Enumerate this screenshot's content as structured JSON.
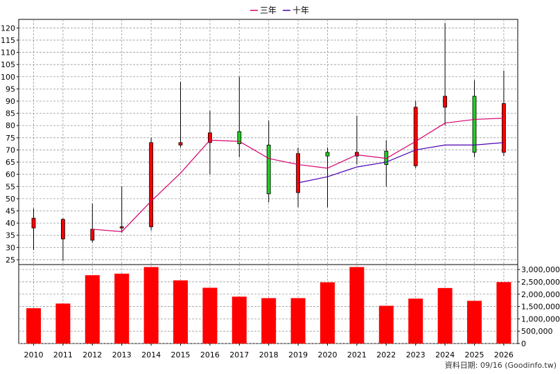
{
  "legend": [
    {
      "label": "三年",
      "color": "#d4006a"
    },
    {
      "label": "十年",
      "color": "#4b00b0"
    }
  ],
  "footer": "資料日期: 09/16  (Goodinfo.tw)",
  "colors": {
    "up": "#ff0000",
    "down": "#22cc22",
    "volume": "#ff0000",
    "grid": "#999999",
    "axis": "#000000"
  },
  "chart_data": [
    {
      "type": "candlestick",
      "years": [
        "2010",
        "2011",
        "2012",
        "2013",
        "2014",
        "2015",
        "2016",
        "2017",
        "2018",
        "2019",
        "2020",
        "2021",
        "2022",
        "2023",
        "2024",
        "2025",
        "2026"
      ],
      "ylim": [
        25,
        120
      ],
      "yticks": [
        25,
        30,
        35,
        40,
        45,
        50,
        55,
        60,
        65,
        70,
        75,
        80,
        85,
        90,
        95,
        100,
        105,
        110,
        115,
        120
      ],
      "grid": true,
      "candles": [
        {
          "year": "2010",
          "open": 38,
          "high": 46,
          "low": 29,
          "close": 42
        },
        {
          "year": "2011",
          "open": 33.5,
          "high": 42,
          "low": 24.5,
          "close": 41.5
        },
        {
          "year": "2012",
          "open": 33,
          "high": 48,
          "low": 32,
          "close": 37.5
        },
        {
          "year": "2013",
          "open": 38,
          "high": 55,
          "low": 36,
          "close": 38.5
        },
        {
          "year": "2014",
          "open": 38.5,
          "high": 75,
          "low": 37,
          "close": 73
        },
        {
          "year": "2015",
          "open": 72,
          "high": 98,
          "low": 71,
          "close": 73
        },
        {
          "year": "2016",
          "open": 73,
          "high": 86,
          "low": 60,
          "close": 77
        },
        {
          "year": "2017",
          "open": 77.5,
          "high": 100,
          "low": 67,
          "close": 72.5
        },
        {
          "year": "2018",
          "open": 72,
          "high": 82,
          "low": 48.5,
          "close": 52
        },
        {
          "year": "2019",
          "open": 52.5,
          "high": 71,
          "low": 46.5,
          "close": 68.5
        },
        {
          "year": "2020",
          "open": 69,
          "high": 71,
          "low": 46.5,
          "close": 67.5
        },
        {
          "year": "2021",
          "open": 67.5,
          "high": 84,
          "low": 64,
          "close": 69
        },
        {
          "year": "2022",
          "open": 69.5,
          "high": 74,
          "low": 55,
          "close": 64
        },
        {
          "year": "2023",
          "open": 63.5,
          "high": 90,
          "low": 62.5,
          "close": 87.5
        },
        {
          "year": "2024",
          "open": 87.5,
          "high": 122,
          "low": 80,
          "close": 92
        },
        {
          "year": "2025",
          "open": 92,
          "high": 98.5,
          "low": 67,
          "close": 69
        },
        {
          "year": "2026",
          "open": 69,
          "high": 102.5,
          "low": 67.5,
          "close": 89
        }
      ],
      "lines": [
        {
          "name": "三年",
          "color": "#d4006a",
          "values": [
            null,
            null,
            37.5,
            36.5,
            49,
            60.5,
            74,
            73.5,
            66.5,
            64,
            62.5,
            68,
            66.5,
            73.5,
            81,
            82.5,
            83
          ]
        },
        {
          "name": "十年",
          "color": "#4b00b0",
          "values": [
            null,
            null,
            null,
            null,
            null,
            null,
            null,
            null,
            null,
            56.5,
            59,
            63,
            65,
            70,
            72,
            72,
            73
          ]
        }
      ]
    },
    {
      "type": "bar",
      "categories": [
        "2010",
        "2011",
        "2012",
        "2013",
        "2014",
        "2015",
        "2016",
        "2017",
        "2018",
        "2019",
        "2020",
        "2021",
        "2022",
        "2023",
        "2024",
        "2025",
        "2026"
      ],
      "values": [
        1430000,
        1620000,
        2770000,
        2830000,
        3100000,
        2560000,
        2260000,
        1900000,
        1840000,
        1840000,
        2480000,
        3100000,
        1530000,
        1820000,
        2250000,
        1730000,
        2490000
      ],
      "ylim": [
        0,
        3000000
      ],
      "yticks": [
        "0",
        "500,000",
        "1,000,000",
        "1,500,000",
        "2,000,000",
        "2,500,000",
        "3,000,000"
      ],
      "ytick_values": [
        0,
        500000,
        1000000,
        1500000,
        2000000,
        2500000,
        3000000
      ],
      "grid": true
    }
  ]
}
